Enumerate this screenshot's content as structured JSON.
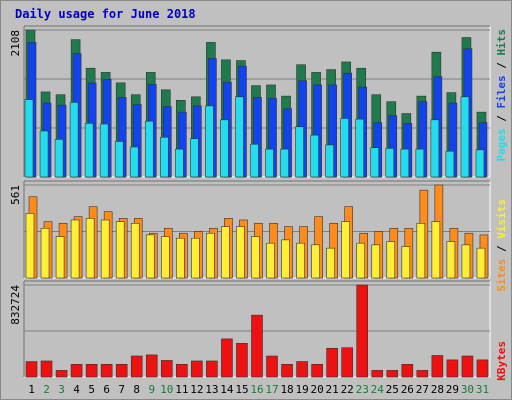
{
  "title": "Daily usage for June 2018",
  "colors": {
    "background": "#c0c0c0",
    "hits": "#1f7a4e",
    "files": "#1144ee",
    "pages": "#22ddee",
    "visits": "#ffee33",
    "sites": "#ff8c1a",
    "kbytes": "#ee1111",
    "title": "#0000c0",
    "weekend_day": "#1a7a3a"
  },
  "chart_data": [
    {
      "type": "bar",
      "name": "hits-files-pages",
      "categories": [
        "1",
        "2",
        "3",
        "4",
        "5",
        "6",
        "7",
        "8",
        "9",
        "10",
        "11",
        "12",
        "13",
        "14",
        "15",
        "16",
        "17",
        "18",
        "19",
        "20",
        "21",
        "22",
        "23",
        "24",
        "25",
        "26",
        "27",
        "28",
        "29",
        "30",
        "31"
      ],
      "ymax_label": "2108",
      "ymax": 2108,
      "legend": [
        "Pages",
        "Files",
        "Hits"
      ],
      "series": [
        {
          "name": "Hits",
          "values": [
            2108,
            1220,
            1180,
            1970,
            1560,
            1500,
            1350,
            1180,
            1500,
            1250,
            1100,
            1150,
            1930,
            1680,
            1670,
            1310,
            1320,
            1160,
            1610,
            1500,
            1540,
            1650,
            1560,
            1180,
            1080,
            910,
            1160,
            1790,
            1210,
            2000,
            930
          ]
        },
        {
          "name": "Files",
          "values": [
            1930,
            1060,
            1030,
            1770,
            1350,
            1400,
            1140,
            1040,
            1330,
            1010,
            930,
            1020,
            1700,
            1360,
            1590,
            1140,
            1130,
            980,
            1380,
            1320,
            1320,
            1490,
            1290,
            780,
            880,
            770,
            1080,
            1440,
            1060,
            1840,
            780
          ]
        },
        {
          "name": "Pages",
          "values": [
            1110,
            660,
            540,
            1070,
            770,
            760,
            510,
            430,
            800,
            570,
            400,
            550,
            1020,
            820,
            1150,
            470,
            400,
            400,
            720,
            600,
            460,
            840,
            830,
            420,
            410,
            400,
            400,
            820,
            370,
            1150,
            390
          ]
        }
      ]
    },
    {
      "type": "bar",
      "name": "sites-visits",
      "categories": [
        "1",
        "2",
        "3",
        "4",
        "5",
        "6",
        "7",
        "8",
        "9",
        "10",
        "11",
        "12",
        "13",
        "14",
        "15",
        "16",
        "17",
        "18",
        "19",
        "20",
        "21",
        "22",
        "23",
        "24",
        "25",
        "26",
        "27",
        "28",
        "29",
        "30",
        "31"
      ],
      "ymax_label": "561",
      "ymax": 561,
      "legend": [
        "Sites",
        "Visits"
      ],
      "series": [
        {
          "name": "Sites",
          "values": [
            490,
            340,
            330,
            370,
            430,
            400,
            360,
            360,
            270,
            300,
            270,
            280,
            300,
            360,
            350,
            330,
            330,
            310,
            310,
            370,
            330,
            430,
            270,
            280,
            300,
            300,
            530,
            561,
            300,
            270,
            260
          ]
        },
        {
          "name": "Visits",
          "values": [
            390,
            300,
            250,
            350,
            360,
            350,
            340,
            330,
            260,
            250,
            240,
            240,
            270,
            310,
            310,
            250,
            210,
            230,
            210,
            200,
            180,
            340,
            210,
            200,
            220,
            190,
            330,
            340,
            220,
            200,
            180
          ]
        }
      ]
    },
    {
      "type": "bar",
      "name": "kbytes",
      "categories": [
        "1",
        "2",
        "3",
        "4",
        "5",
        "6",
        "7",
        "8",
        "9",
        "10",
        "11",
        "12",
        "13",
        "14",
        "15",
        "16",
        "17",
        "18",
        "19",
        "20",
        "21",
        "22",
        "23",
        "24",
        "25",
        "26",
        "27",
        "28",
        "29",
        "30",
        "31"
      ],
      "ymax_label": "832724",
      "ymax": 832724,
      "legend": [
        "KBytes"
      ],
      "series": [
        {
          "name": "KBytes",
          "values": [
            140000,
            145000,
            60000,
            115000,
            115000,
            115000,
            115000,
            190000,
            200000,
            150000,
            115000,
            145000,
            145000,
            345000,
            305000,
            560000,
            190000,
            115000,
            140000,
            115000,
            260000,
            265000,
            832724,
            60000,
            60000,
            115000,
            60000,
            195000,
            155000,
            190000,
            155000
          ]
        }
      ]
    }
  ],
  "x_labels": [
    "1",
    "2",
    "3",
    "4",
    "5",
    "6",
    "7",
    "8",
    "9",
    "10",
    "11",
    "12",
    "13",
    "14",
    "15",
    "16",
    "17",
    "18",
    "19",
    "20",
    "21",
    "22",
    "23",
    "24",
    "25",
    "26",
    "27",
    "28",
    "29",
    "30",
    "31"
  ],
  "weekend_days": [
    "2",
    "3",
    "9",
    "10",
    "16",
    "17",
    "23",
    "24",
    "30",
    "31"
  ]
}
